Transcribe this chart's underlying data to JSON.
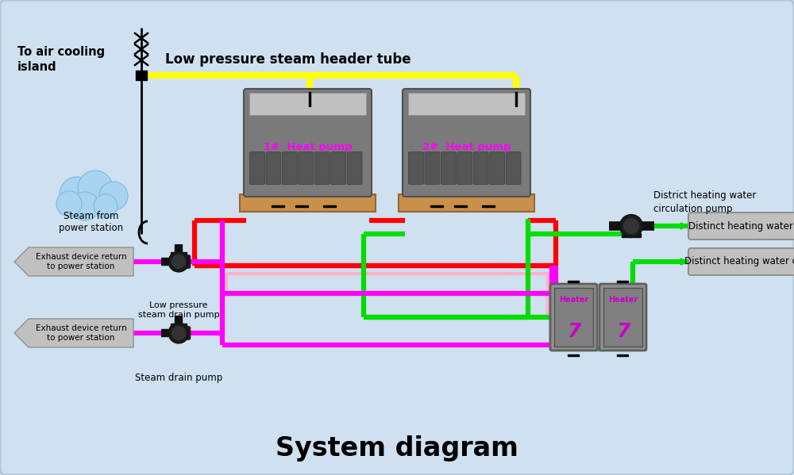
{
  "title": "System diagram",
  "bg_color": "#cfe0f0",
  "title_fontsize": 24,
  "title_fontweight": "bold",
  "labels": {
    "air_cooling": "To air cooling\nisland",
    "steam_header": "Low pressure steam header tube",
    "heat_pump1": "1#  Heat pump",
    "heat_pump2": "2#  Heat pump",
    "district_pump": "District heating water\ncirculation pump",
    "distinct_inlet": "Distinct heating water inlet",
    "distinct_outlet": "Distinct heating water outlet",
    "steam_from": "Steam from\npower station",
    "exhaust1": "Exhaust device return\nto power station",
    "exhaust2": "Exhaust device return\nto power station",
    "lp_drain": "Low pressure\nsteam drain pump",
    "drain": "Steam drain pump",
    "heater1": "Heater",
    "heater2": "Heater"
  },
  "colors": {
    "yellow": "#ffff00",
    "green": "#00dd00",
    "red": "#ff0000",
    "magenta": "#ff00ff",
    "pink": "#ffb0c8",
    "black": "#000000",
    "pipe_black": "#1a1a1a",
    "label_bg": "#b8b8b8",
    "heat_pump_label": "#ff00ff",
    "heater_bg": "#909090",
    "wood": "#c8904a"
  },
  "lw_main": 4.5,
  "lw_thin": 3.0
}
